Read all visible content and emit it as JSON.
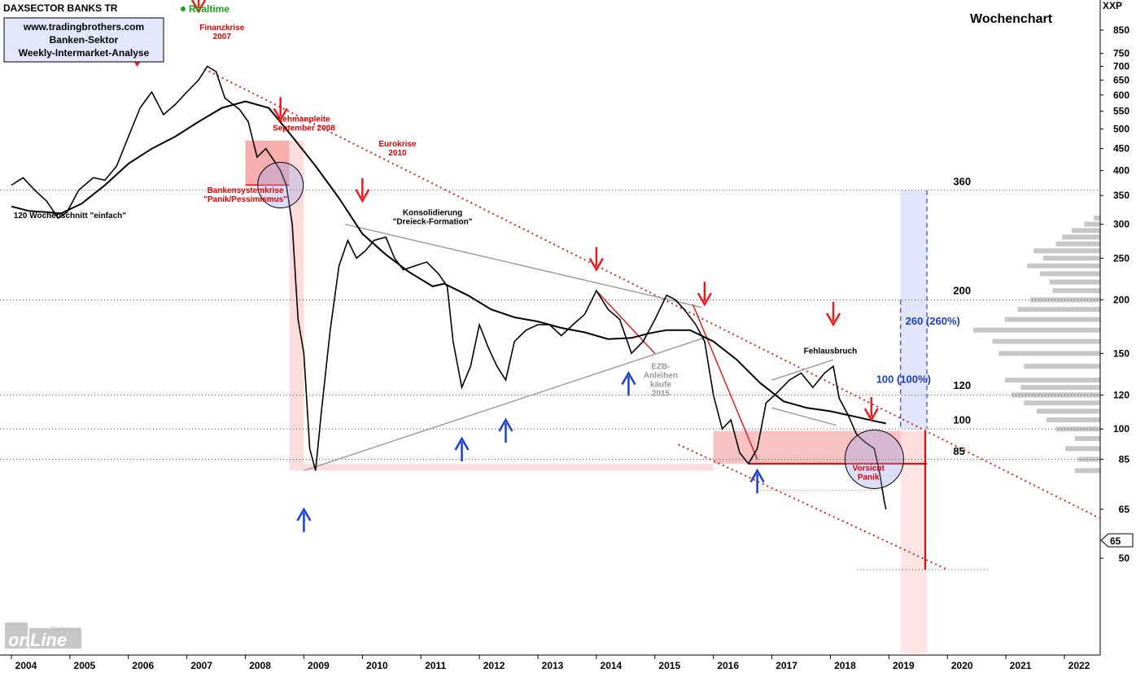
{
  "chart_data": {
    "type": "line",
    "title": "DAXSECTOR BANKS TR",
    "realtime_label": "Realtime",
    "timeframe_label": "Wochenchart",
    "info_box": [
      "www.tradingbrothers.com",
      "Banken-Sektor",
      "Weekly-Intermarket-Analyse"
    ],
    "currency_label": "XXP",
    "y_scale": "log",
    "ylim": [
      30,
      1000
    ],
    "xlim": [
      2004.0,
      2022.75
    ],
    "x_ticks": [
      "2004",
      "2005",
      "2006",
      "2007",
      "2008",
      "2009",
      "2010",
      "2011",
      "2012",
      "2013",
      "2014",
      "2015",
      "2016",
      "2017",
      "2018",
      "2019",
      "2020",
      "2021",
      "2022"
    ],
    "y_ticks": [
      50,
      65,
      85,
      100,
      120,
      150,
      200,
      250,
      300,
      350,
      400,
      450,
      500,
      550,
      600,
      650,
      700,
      750,
      850
    ],
    "last_value_label": "65",
    "grid": {
      "horizontal_dotted_levels": [
        85,
        100,
        120,
        200,
        360
      ]
    },
    "series": [
      {
        "name": "",
        "role": "price",
        "color": "#000000",
        "points": [
          [
            2004.0,
            370
          ],
          [
            2004.2,
            385
          ],
          [
            2004.4,
            360
          ],
          [
            2004.6,
            340
          ],
          [
            2004.8,
            310
          ],
          [
            2004.95,
            320
          ],
          [
            2005.15,
            360
          ],
          [
            2005.4,
            385
          ],
          [
            2005.6,
            380
          ],
          [
            2005.8,
            410
          ],
          [
            2006.0,
            480
          ],
          [
            2006.2,
            560
          ],
          [
            2006.4,
            610
          ],
          [
            2006.6,
            540
          ],
          [
            2006.8,
            570
          ],
          [
            2007.0,
            610
          ],
          [
            2007.2,
            650
          ],
          [
            2007.35,
            700
          ],
          [
            2007.5,
            680
          ],
          [
            2007.65,
            590
          ],
          [
            2007.9,
            555
          ],
          [
            2008.05,
            520
          ],
          [
            2008.2,
            430
          ],
          [
            2008.35,
            450
          ],
          [
            2008.5,
            420
          ],
          [
            2008.6,
            400
          ],
          [
            2008.7,
            370
          ],
          [
            2008.8,
            300
          ],
          [
            2008.9,
            180
          ],
          [
            2009.0,
            150
          ],
          [
            2009.1,
            90
          ],
          [
            2009.2,
            80
          ],
          [
            2009.3,
            110
          ],
          [
            2009.45,
            170
          ],
          [
            2009.6,
            240
          ],
          [
            2009.75,
            275
          ],
          [
            2009.9,
            250
          ],
          [
            2010.05,
            260
          ],
          [
            2010.2,
            275
          ],
          [
            2010.4,
            280
          ],
          [
            2010.55,
            250
          ],
          [
            2010.7,
            235
          ],
          [
            2010.9,
            240
          ],
          [
            2011.1,
            245
          ],
          [
            2011.3,
            230
          ],
          [
            2011.45,
            215
          ],
          [
            2011.55,
            160
          ],
          [
            2011.7,
            125
          ],
          [
            2011.85,
            140
          ],
          [
            2012.0,
            175
          ],
          [
            2012.15,
            155
          ],
          [
            2012.3,
            140
          ],
          [
            2012.45,
            130
          ],
          [
            2012.6,
            160
          ],
          [
            2012.8,
            170
          ],
          [
            2013.0,
            175
          ],
          [
            2013.2,
            175
          ],
          [
            2013.4,
            165
          ],
          [
            2013.6,
            175
          ],
          [
            2013.8,
            185
          ],
          [
            2014.0,
            210
          ],
          [
            2014.2,
            190
          ],
          [
            2014.4,
            180
          ],
          [
            2014.6,
            150
          ],
          [
            2014.8,
            160
          ],
          [
            2015.0,
            180
          ],
          [
            2015.2,
            205
          ],
          [
            2015.35,
            200
          ],
          [
            2015.5,
            190
          ],
          [
            2015.7,
            175
          ],
          [
            2015.85,
            160
          ],
          [
            2016.0,
            120
          ],
          [
            2016.15,
            100
          ],
          [
            2016.3,
            105
          ],
          [
            2016.45,
            88
          ],
          [
            2016.6,
            83
          ],
          [
            2016.75,
            90
          ],
          [
            2016.9,
            115
          ],
          [
            2017.05,
            120
          ],
          [
            2017.3,
            130
          ],
          [
            2017.5,
            135
          ],
          [
            2017.7,
            125
          ],
          [
            2017.9,
            135
          ],
          [
            2018.05,
            140
          ],
          [
            2018.15,
            118
          ],
          [
            2018.3,
            108
          ],
          [
            2018.45,
            97
          ],
          [
            2018.6,
            93
          ],
          [
            2018.75,
            90
          ],
          [
            2018.85,
            78
          ],
          [
            2018.92,
            68
          ],
          [
            2018.95,
            65
          ]
        ]
      },
      {
        "name": "120 Wochenschnitt \"einfach\"",
        "role": "moving_average",
        "color": "#000000",
        "points": [
          [
            2004.0,
            330
          ],
          [
            2004.3,
            322
          ],
          [
            2004.6,
            320
          ],
          [
            2004.85,
            318
          ],
          [
            2005.2,
            335
          ],
          [
            2005.6,
            370
          ],
          [
            2006.0,
            415
          ],
          [
            2006.4,
            450
          ],
          [
            2006.8,
            480
          ],
          [
            2007.2,
            520
          ],
          [
            2007.6,
            560
          ],
          [
            2008.0,
            580
          ],
          [
            2008.4,
            560
          ],
          [
            2008.8,
            480
          ],
          [
            2009.2,
            410
          ],
          [
            2009.6,
            345
          ],
          [
            2010.0,
            285
          ],
          [
            2010.4,
            255
          ],
          [
            2010.8,
            232
          ],
          [
            2011.2,
            215
          ],
          [
            2011.4,
            218
          ],
          [
            2011.8,
            205
          ],
          [
            2012.2,
            190
          ],
          [
            2012.6,
            182
          ],
          [
            2013.0,
            178
          ],
          [
            2013.4,
            172
          ],
          [
            2013.8,
            168
          ],
          [
            2014.2,
            162
          ],
          [
            2014.6,
            163
          ],
          [
            2014.9,
            167
          ],
          [
            2015.2,
            170
          ],
          [
            2015.6,
            170
          ],
          [
            2016.0,
            160
          ],
          [
            2016.4,
            145
          ],
          [
            2016.8,
            128
          ],
          [
            2017.2,
            116
          ],
          [
            2017.6,
            112
          ],
          [
            2018.0,
            110
          ],
          [
            2018.4,
            107
          ],
          [
            2018.8,
            104
          ],
          [
            2018.95,
            103
          ]
        ]
      }
    ],
    "annotations": [
      {
        "text": "Finanzkrise\n2007",
        "x": 2007.6,
        "y": 850,
        "color": "#e00000"
      },
      {
        "text": "Lehmanpleite\nSeptember 2008",
        "x": 2009.0,
        "y": 520,
        "color": "#e00000"
      },
      {
        "text": "Eurokrise\n2010",
        "x": 2010.6,
        "y": 455,
        "color": "#e00000"
      },
      {
        "text": "Bankensystemkrise\n\"Panik/Pessimismus\"",
        "x": 2008.0,
        "y": 355,
        "color": "#e00000"
      },
      {
        "text": "120 Wochenschnitt \"einfach\"",
        "x": 2005.0,
        "y": 310,
        "color": "#000000"
      },
      {
        "text": "Konsolidierung\n\"Dreieck-Formation\"",
        "x": 2011.2,
        "y": 315,
        "color": "#000000"
      },
      {
        "text": "EZB-\nAnleihen\nkäufe\n2015",
        "x": 2015.1,
        "y": 138,
        "color": "#999999"
      },
      {
        "text": "Fehlausbruch",
        "x": 2018.0,
        "y": 150,
        "color": "#000000"
      },
      {
        "text": "Vorsicht\nPanik",
        "x": 2018.65,
        "y": 80,
        "color": "#e00000"
      },
      {
        "text": "260 (260%)",
        "x": 2019.75,
        "y": 175,
        "color": "#1a3fc9"
      },
      {
        "text": "100 (100%)",
        "x": 2019.25,
        "y": 128,
        "color": "#1a3fc9"
      },
      {
        "text": "360",
        "x": 2020.1,
        "y": 370,
        "color": "#000000"
      },
      {
        "text": "200",
        "x": 2020.1,
        "y": 206,
        "color": "#000000"
      },
      {
        "text": "120",
        "x": 2020.1,
        "y": 124,
        "color": "#000000"
      },
      {
        "text": "100",
        "x": 2020.1,
        "y": 103,
        "color": "#000000"
      },
      {
        "text": "85",
        "x": 2020.1,
        "y": 87,
        "color": "#000000"
      }
    ],
    "arrows_down": [
      [
        2006.15,
        705
      ],
      [
        2007.2,
        940
      ],
      [
        2008.6,
        525
      ],
      [
        2010.0,
        340
      ],
      [
        2014.0,
        235
      ],
      [
        2015.85,
        195
      ],
      [
        2018.05,
        175
      ],
      [
        2018.7,
        105
      ]
    ],
    "arrows_up": [
      [
        2009.0,
        65
      ],
      [
        2011.7,
        95
      ],
      [
        2012.45,
        105
      ],
      [
        2014.55,
        135
      ],
      [
        2016.75,
        80
      ]
    ],
    "trendlines": [
      {
        "points": [
          [
            2007.3,
            690
          ],
          [
            2022.6,
            62
          ]
        ],
        "style": "dotted",
        "color": "#e02020"
      },
      {
        "points": [
          [
            2009.0,
            80
          ],
          [
            2015.9,
            164
          ]
        ],
        "style": "solid",
        "color": "#a0a0a0"
      },
      {
        "points": [
          [
            2009.7,
            300
          ],
          [
            2015.8,
            192
          ]
        ],
        "style": "solid",
        "color": "#a0a0a0"
      },
      {
        "points": [
          [
            2014.0,
            210
          ],
          [
            2015.0,
            150
          ]
        ],
        "style": "solid",
        "color": "#e02020"
      },
      {
        "points": [
          [
            2015.65,
            195
          ],
          [
            2016.75,
            85
          ]
        ],
        "style": "solid",
        "color": "#e02020"
      },
      {
        "points": [
          [
            2017.0,
            130
          ],
          [
            2018.05,
            145
          ]
        ],
        "style": "solid",
        "color": "#a0a0a0"
      },
      {
        "points": [
          [
            2017.0,
            112
          ],
          [
            2018.1,
            102
          ]
        ],
        "style": "solid",
        "color": "#a0a0a0"
      },
      {
        "points": [
          [
            2015.4,
            92
          ],
          [
            2020.0,
            47
          ]
        ],
        "style": "dotted",
        "color": "#e02020"
      }
    ],
    "zones": [
      {
        "x0": 2008.0,
        "x1": 2008.75,
        "y0": 370,
        "y1": 470,
        "color": "#f5a0a0"
      },
      {
        "x0": 2008.75,
        "x1": 2009.0,
        "y0": 80,
        "y1": 470,
        "color": "#fbd6d6"
      },
      {
        "x0": 2009.0,
        "x1": 2016.0,
        "y0": 80,
        "y1": 83,
        "color": "#fbd6d6"
      },
      {
        "x0": 2016.0,
        "x1": 2019.65,
        "y0": 83,
        "y1": 99,
        "color": "#f8b8b8"
      },
      {
        "x0": 2019.2,
        "x1": 2019.65,
        "y0": 30,
        "y1": 99,
        "color": "#fde0e0"
      },
      {
        "x0": 2019.2,
        "x1": 2019.65,
        "y0": 100,
        "y1": 360,
        "color": "#dde0fb"
      }
    ]
  }
}
